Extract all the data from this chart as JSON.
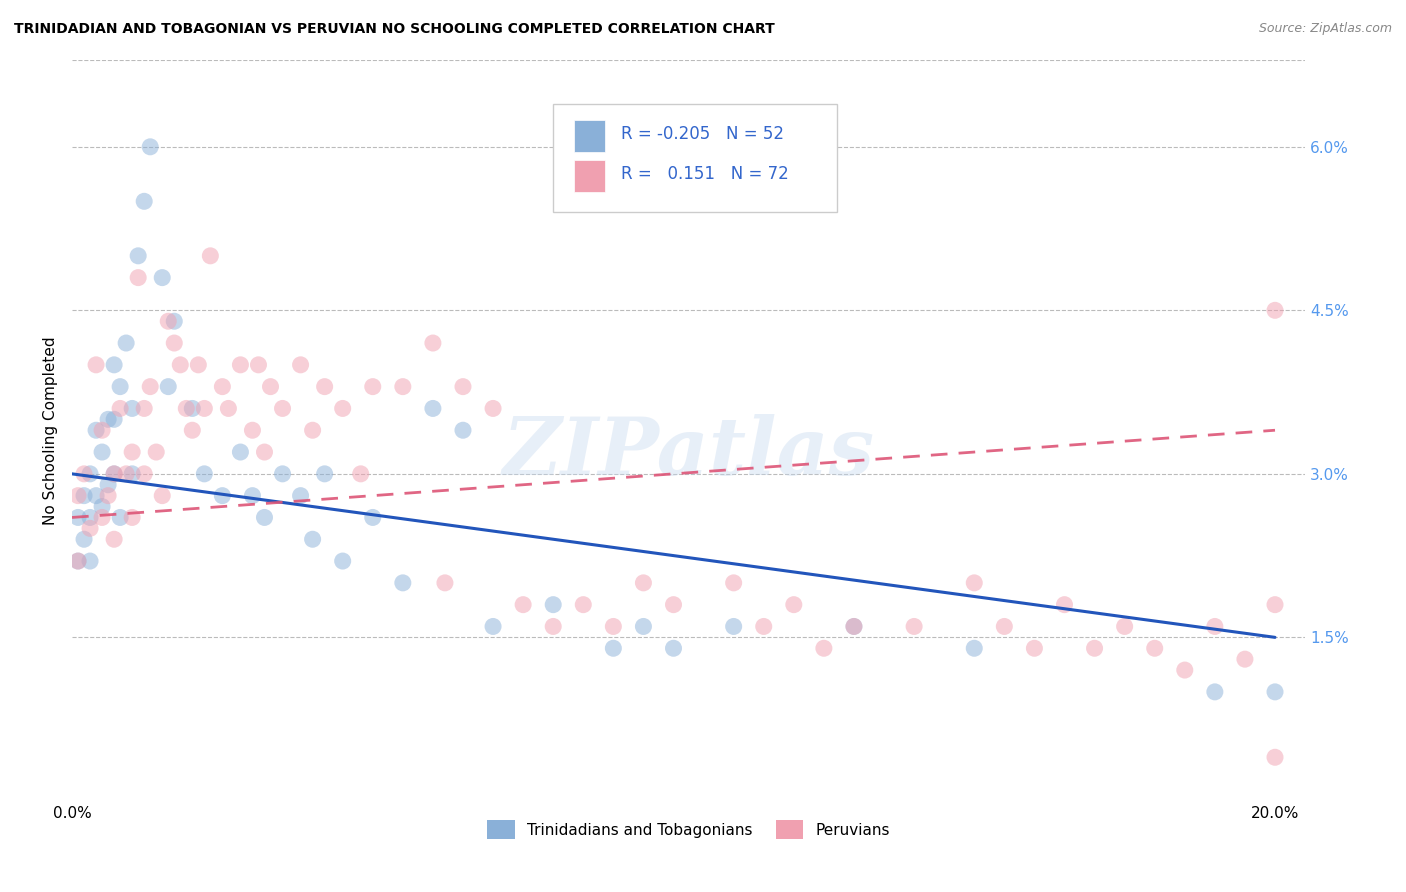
{
  "title": "TRINIDADIAN AND TOBAGONIAN VS PERUVIAN NO SCHOOLING COMPLETED CORRELATION CHART",
  "source": "Source: ZipAtlas.com",
  "ylabel": "No Schooling Completed",
  "xlim": [
    0.0,
    0.205
  ],
  "ylim": [
    0.0,
    0.068
  ],
  "xtick_labels": [
    "0.0%",
    "",
    "",
    "",
    "20.0%"
  ],
  "xtick_vals": [
    0.0,
    0.05,
    0.1,
    0.15,
    0.2
  ],
  "ytick_labels_right": [
    "1.5%",
    "3.0%",
    "4.5%",
    "6.0%"
  ],
  "ytick_vals_right": [
    0.015,
    0.03,
    0.045,
    0.06
  ],
  "legend_r_blue": "-0.205",
  "legend_n_blue": "52",
  "legend_r_pink": "0.151",
  "legend_n_pink": "72",
  "blue_color": "#8ab0d8",
  "pink_color": "#f0a0b0",
  "blue_line_color": "#2255bb",
  "pink_line_color": "#dd5577",
  "watermark": "ZIPatlas",
  "blue_x": [
    0.001,
    0.001,
    0.002,
    0.002,
    0.003,
    0.003,
    0.003,
    0.004,
    0.004,
    0.005,
    0.005,
    0.006,
    0.006,
    0.007,
    0.007,
    0.007,
    0.008,
    0.008,
    0.009,
    0.01,
    0.01,
    0.011,
    0.012,
    0.013,
    0.015,
    0.016,
    0.017,
    0.02,
    0.022,
    0.025,
    0.028,
    0.03,
    0.032,
    0.035,
    0.038,
    0.04,
    0.042,
    0.045,
    0.05,
    0.055,
    0.06,
    0.065,
    0.07,
    0.08,
    0.09,
    0.095,
    0.1,
    0.11,
    0.13,
    0.15,
    0.19,
    0.2
  ],
  "blue_y": [
    0.026,
    0.022,
    0.028,
    0.024,
    0.03,
    0.026,
    0.022,
    0.034,
    0.028,
    0.032,
    0.027,
    0.035,
    0.029,
    0.04,
    0.035,
    0.03,
    0.038,
    0.026,
    0.042,
    0.036,
    0.03,
    0.05,
    0.055,
    0.06,
    0.048,
    0.038,
    0.044,
    0.036,
    0.03,
    0.028,
    0.032,
    0.028,
    0.026,
    0.03,
    0.028,
    0.024,
    0.03,
    0.022,
    0.026,
    0.02,
    0.036,
    0.034,
    0.016,
    0.018,
    0.014,
    0.016,
    0.014,
    0.016,
    0.016,
    0.014,
    0.01,
    0.01
  ],
  "pink_x": [
    0.001,
    0.001,
    0.002,
    0.003,
    0.004,
    0.005,
    0.005,
    0.006,
    0.007,
    0.007,
    0.008,
    0.009,
    0.01,
    0.01,
    0.011,
    0.012,
    0.012,
    0.013,
    0.014,
    0.015,
    0.016,
    0.017,
    0.018,
    0.019,
    0.02,
    0.021,
    0.022,
    0.023,
    0.025,
    0.026,
    0.028,
    0.03,
    0.031,
    0.032,
    0.033,
    0.035,
    0.038,
    0.04,
    0.042,
    0.045,
    0.048,
    0.05,
    0.055,
    0.06,
    0.062,
    0.065,
    0.07,
    0.075,
    0.08,
    0.085,
    0.09,
    0.095,
    0.1,
    0.11,
    0.115,
    0.12,
    0.125,
    0.13,
    0.14,
    0.15,
    0.155,
    0.16,
    0.165,
    0.17,
    0.175,
    0.18,
    0.185,
    0.19,
    0.195,
    0.2,
    0.2,
    0.2
  ],
  "pink_y": [
    0.028,
    0.022,
    0.03,
    0.025,
    0.04,
    0.034,
    0.026,
    0.028,
    0.03,
    0.024,
    0.036,
    0.03,
    0.032,
    0.026,
    0.048,
    0.036,
    0.03,
    0.038,
    0.032,
    0.028,
    0.044,
    0.042,
    0.04,
    0.036,
    0.034,
    0.04,
    0.036,
    0.05,
    0.038,
    0.036,
    0.04,
    0.034,
    0.04,
    0.032,
    0.038,
    0.036,
    0.04,
    0.034,
    0.038,
    0.036,
    0.03,
    0.038,
    0.038,
    0.042,
    0.02,
    0.038,
    0.036,
    0.018,
    0.016,
    0.018,
    0.016,
    0.02,
    0.018,
    0.02,
    0.016,
    0.018,
    0.014,
    0.016,
    0.016,
    0.02,
    0.016,
    0.014,
    0.018,
    0.014,
    0.016,
    0.014,
    0.012,
    0.016,
    0.013,
    0.018,
    0.004,
    0.045
  ],
  "blue_trend_x": [
    0.0,
    0.2
  ],
  "blue_trend_y": [
    0.03,
    0.015
  ],
  "pink_trend_x": [
    0.0,
    0.2
  ],
  "pink_trend_y": [
    0.026,
    0.034
  ]
}
